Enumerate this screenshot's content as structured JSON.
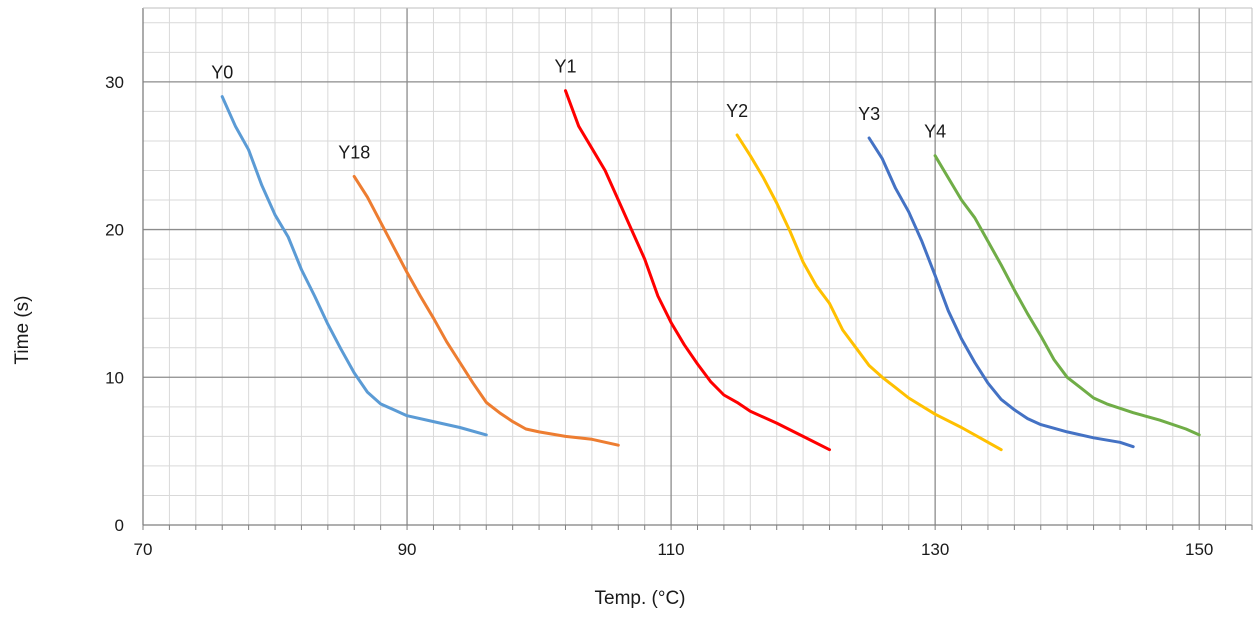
{
  "chart_data": {
    "type": "line",
    "xlabel": "Temp. (°C)",
    "ylabel": "Time (s)",
    "xlim": [
      70,
      154
    ],
    "ylim": [
      0,
      35
    ],
    "x_ticks": [
      "70",
      "90",
      "110",
      "130",
      "150"
    ],
    "y_ticks": [
      "0",
      "10",
      "20",
      "30"
    ],
    "grid": {
      "major": true,
      "minor": true,
      "x_major_step": 20,
      "x_minor_step": 2,
      "y_major_step": 10,
      "y_minor_step": 2
    },
    "legend": "none",
    "series": [
      {
        "name": "Y0",
        "color": "#5b9bd5",
        "points": [
          [
            76.0,
            29.0
          ],
          [
            77.0,
            27.0
          ],
          [
            78.0,
            25.4
          ],
          [
            79.0,
            23.0
          ],
          [
            80.0,
            21.0
          ],
          [
            81.0,
            19.5
          ],
          [
            82.0,
            17.3
          ],
          [
            83.0,
            15.5
          ],
          [
            84.0,
            13.6
          ],
          [
            85.0,
            11.9
          ],
          [
            86.0,
            10.3
          ],
          [
            87.0,
            9.0
          ],
          [
            88.0,
            8.2
          ],
          [
            89.0,
            7.8
          ],
          [
            90.0,
            7.4
          ],
          [
            92.0,
            7.0
          ],
          [
            94.0,
            6.6
          ],
          [
            96.0,
            6.1
          ]
        ]
      },
      {
        "name": "Y18",
        "color": "#ed7d31",
        "points": [
          [
            86.0,
            23.6
          ],
          [
            87.0,
            22.2
          ],
          [
            88.0,
            20.5
          ],
          [
            89.0,
            18.8
          ],
          [
            90.0,
            17.1
          ],
          [
            91.0,
            15.5
          ],
          [
            92.0,
            14.0
          ],
          [
            93.0,
            12.4
          ],
          [
            94.0,
            11.0
          ],
          [
            95.0,
            9.6
          ],
          [
            96.0,
            8.3
          ],
          [
            97.0,
            7.6
          ],
          [
            98.0,
            7.0
          ],
          [
            99.0,
            6.5
          ],
          [
            100.0,
            6.3
          ],
          [
            102.0,
            6.0
          ],
          [
            104.0,
            5.8
          ],
          [
            106.0,
            5.4
          ]
        ]
      },
      {
        "name": "Y1",
        "color": "#ff0000",
        "points": [
          [
            102.0,
            29.4
          ],
          [
            103.0,
            27.0
          ],
          [
            104.0,
            25.5
          ],
          [
            105.0,
            24.0
          ],
          [
            106.0,
            22.0
          ],
          [
            107.0,
            20.0
          ],
          [
            108.0,
            18.0
          ],
          [
            109.0,
            15.5
          ],
          [
            110.0,
            13.7
          ],
          [
            111.0,
            12.2
          ],
          [
            112.0,
            10.9
          ],
          [
            113.0,
            9.7
          ],
          [
            114.0,
            8.8
          ],
          [
            115.0,
            8.3
          ],
          [
            116.0,
            7.7
          ],
          [
            118.0,
            6.9
          ],
          [
            120.0,
            6.0
          ],
          [
            122.0,
            5.1
          ]
        ]
      },
      {
        "name": "Y2",
        "color": "#ffc000",
        "points": [
          [
            115.0,
            26.4
          ],
          [
            116.0,
            25.0
          ],
          [
            117.0,
            23.5
          ],
          [
            118.0,
            21.8
          ],
          [
            119.0,
            19.9
          ],
          [
            120.0,
            17.8
          ],
          [
            121.0,
            16.2
          ],
          [
            122.0,
            15.0
          ],
          [
            123.0,
            13.2
          ],
          [
            124.0,
            12.0
          ],
          [
            125.0,
            10.8
          ],
          [
            126.0,
            10.0
          ],
          [
            127.0,
            9.3
          ],
          [
            128.0,
            8.6
          ],
          [
            130.0,
            7.5
          ],
          [
            132.0,
            6.6
          ],
          [
            134.0,
            5.6
          ],
          [
            135.0,
            5.1
          ]
        ]
      },
      {
        "name": "Y3",
        "color": "#4472c4",
        "points": [
          [
            125.0,
            26.2
          ],
          [
            126.0,
            24.8
          ],
          [
            127.0,
            22.8
          ],
          [
            128.0,
            21.2
          ],
          [
            129.0,
            19.2
          ],
          [
            130.0,
            16.9
          ],
          [
            131.0,
            14.5
          ],
          [
            132.0,
            12.6
          ],
          [
            133.0,
            11.0
          ],
          [
            134.0,
            9.6
          ],
          [
            135.0,
            8.5
          ],
          [
            136.0,
            7.8
          ],
          [
            137.0,
            7.2
          ],
          [
            138.0,
            6.8
          ],
          [
            140.0,
            6.3
          ],
          [
            142.0,
            5.9
          ],
          [
            144.0,
            5.6
          ],
          [
            145.0,
            5.3
          ]
        ]
      },
      {
        "name": "Y4",
        "color": "#70ad47",
        "points": [
          [
            130.0,
            25.0
          ],
          [
            131.0,
            23.5
          ],
          [
            132.0,
            22.0
          ],
          [
            133.0,
            20.8
          ],
          [
            134.0,
            19.2
          ],
          [
            135.0,
            17.6
          ],
          [
            136.0,
            15.9
          ],
          [
            137.0,
            14.3
          ],
          [
            138.0,
            12.8
          ],
          [
            139.0,
            11.2
          ],
          [
            140.0,
            10.0
          ],
          [
            141.0,
            9.3
          ],
          [
            142.0,
            8.6
          ],
          [
            143.0,
            8.2
          ],
          [
            145.0,
            7.6
          ],
          [
            147.0,
            7.1
          ],
          [
            149.0,
            6.5
          ],
          [
            150.0,
            6.1
          ]
        ]
      }
    ]
  }
}
